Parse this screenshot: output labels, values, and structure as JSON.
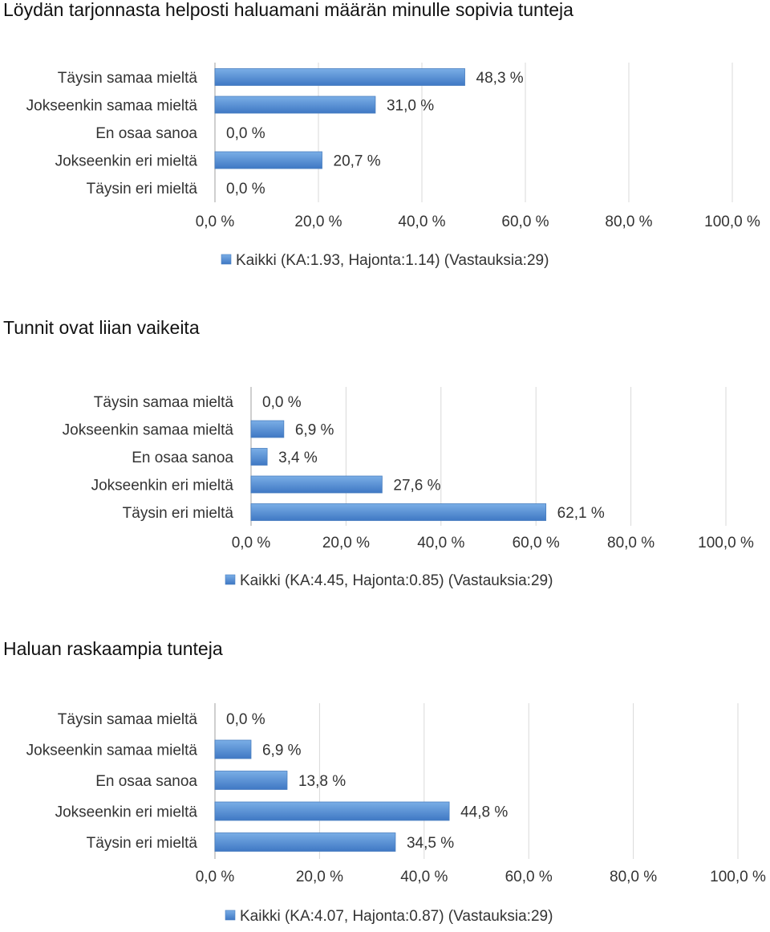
{
  "colors": {
    "bar_top": "#7aaee6",
    "bar_bottom": "#3f78c4",
    "bar_edge": "#4a7fc0"
  },
  "chart_data": [
    {
      "type": "bar",
      "orientation": "horizontal",
      "title": "Löydän tarjonnasta helposti haluamani määrän minulle sopivia tunteja",
      "categories": [
        "Täysin samaa mieltä",
        "Jokseenkin samaa mieltä",
        "En osaa sanoa",
        "Jokseenkin eri mieltä",
        "Täysin eri mieltä"
      ],
      "values": [
        48.3,
        31.0,
        0.0,
        20.7,
        0.0
      ],
      "value_labels": [
        "48,3 %",
        "31,0 %",
        "0,0 %",
        "20,7 %",
        "0,0 %"
      ],
      "xlim": [
        0,
        100
      ],
      "ticks": [
        "0,0 %",
        "20,0 %",
        "40,0 %",
        "60,0 %",
        "80,0 %",
        "100,0 %"
      ],
      "legend": "Kaikki (KA:1.93, Hajonta:1.14) (Vastauksia:29)",
      "legend_position": "bottom",
      "grid": true
    },
    {
      "type": "bar",
      "orientation": "horizontal",
      "title": "Tunnit ovat liian vaikeita",
      "categories": [
        "Täysin samaa mieltä",
        "Jokseenkin samaa mieltä",
        "En osaa sanoa",
        "Jokseenkin eri mieltä",
        "Täysin eri mieltä"
      ],
      "values": [
        0.0,
        6.9,
        3.4,
        27.6,
        62.1
      ],
      "value_labels": [
        "0,0 %",
        "6,9 %",
        "3,4 %",
        "27,6 %",
        "62,1 %"
      ],
      "xlim": [
        0,
        100
      ],
      "ticks": [
        "0,0 %",
        "20,0 %",
        "40,0 %",
        "60,0 %",
        "80,0 %",
        "100,0 %"
      ],
      "legend": "Kaikki (KA:4.45, Hajonta:0.85) (Vastauksia:29)",
      "legend_position": "bottom",
      "grid": true
    },
    {
      "type": "bar",
      "orientation": "horizontal",
      "title": "Haluan raskaampia tunteja",
      "categories": [
        "Täysin samaa mieltä",
        "Jokseenkin samaa mieltä",
        "En osaa sanoa",
        "Jokseenkin eri mieltä",
        "Täysin eri mieltä"
      ],
      "values": [
        0.0,
        6.9,
        13.8,
        44.8,
        34.5
      ],
      "value_labels": [
        "0,0 %",
        "6,9 %",
        "13,8 %",
        "44,8 %",
        "34,5 %"
      ],
      "xlim": [
        0,
        100
      ],
      "ticks": [
        "0,0 %",
        "20,0 %",
        "40,0 %",
        "60,0 %",
        "80,0 %",
        "100,0 %"
      ],
      "legend": "Kaikki (KA:4.07, Hajonta:0.87) (Vastauksia:29)",
      "legend_position": "bottom",
      "grid": true
    }
  ]
}
